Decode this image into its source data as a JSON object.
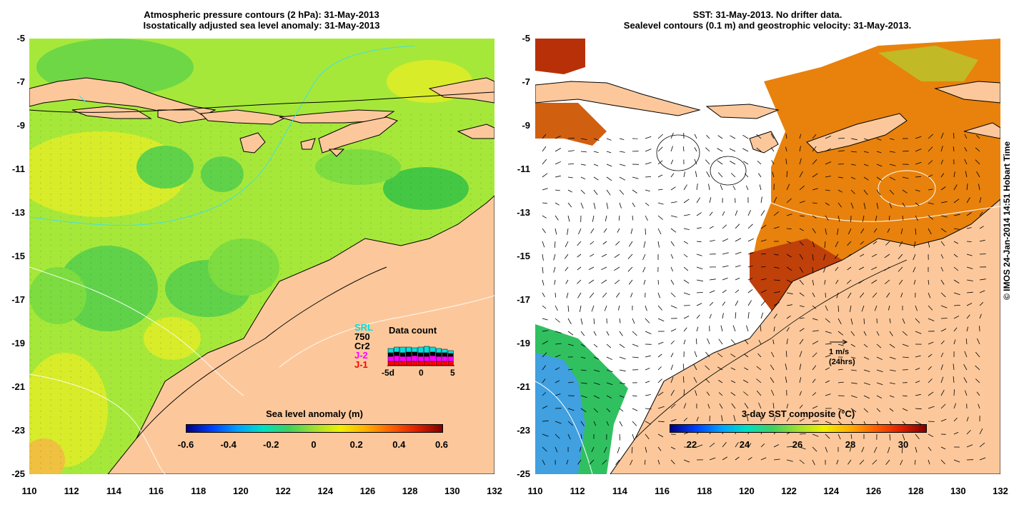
{
  "left_panel": {
    "title_line1": "Atmospheric pressure contours (2 hPa): 31-May-2013",
    "title_line2": "Isostatically adjusted sea level anomaly: 31-May-2013",
    "colorbar": {
      "title": "Sea level anomaly (m)",
      "ticks": [
        "-0.6",
        "-0.4",
        "-0.2",
        "0",
        "0.2",
        "0.4",
        "0.6"
      ]
    },
    "legend": {
      "satellites": [
        {
          "label": "SRL",
          "color": "#00e0e0"
        },
        {
          "label": "750",
          "color": "#000000"
        },
        {
          "label": "Cr2",
          "color": "#000000"
        },
        {
          "label": "J-2",
          "color": "#ff00ff"
        },
        {
          "label": "J-1",
          "color": "#ff0000"
        }
      ],
      "data_count_title": "Data count",
      "x_ticks": [
        "-5d",
        "0",
        "5"
      ]
    }
  },
  "right_panel": {
    "title_line1": "SST: 31-May-2013. No drifter data.",
    "title_line2": "Sealevel contours (0.1 m) and geostrophic velocity: 31-May-2013.",
    "colorbar": {
      "title": "3-day SST composite (°C)",
      "ticks": [
        "22",
        "24",
        "26",
        "28",
        "30"
      ]
    },
    "velocity_scale": {
      "line1": "1 m/s",
      "line2": "(24hrs)"
    }
  },
  "axes": {
    "y_ticks": [
      "-5",
      "-7",
      "-9",
      "-11",
      "-13",
      "-15",
      "-17",
      "-19",
      "-21",
      "-23",
      "-25"
    ],
    "x_ticks": [
      "110",
      "112",
      "114",
      "116",
      "118",
      "120",
      "122",
      "124",
      "126",
      "128",
      "130",
      "132"
    ]
  },
  "credit": "© IMOS 24-Jan-2014 14:51 Hobart Time",
  "colors": {
    "land": "#fcc89b",
    "sea_base": "#a6e83a",
    "sea_yellow": "#d8ec2a",
    "sea_green": "#5fd24a",
    "sst_orange": "#e8820c",
    "sst_red": "#b83008"
  }
}
